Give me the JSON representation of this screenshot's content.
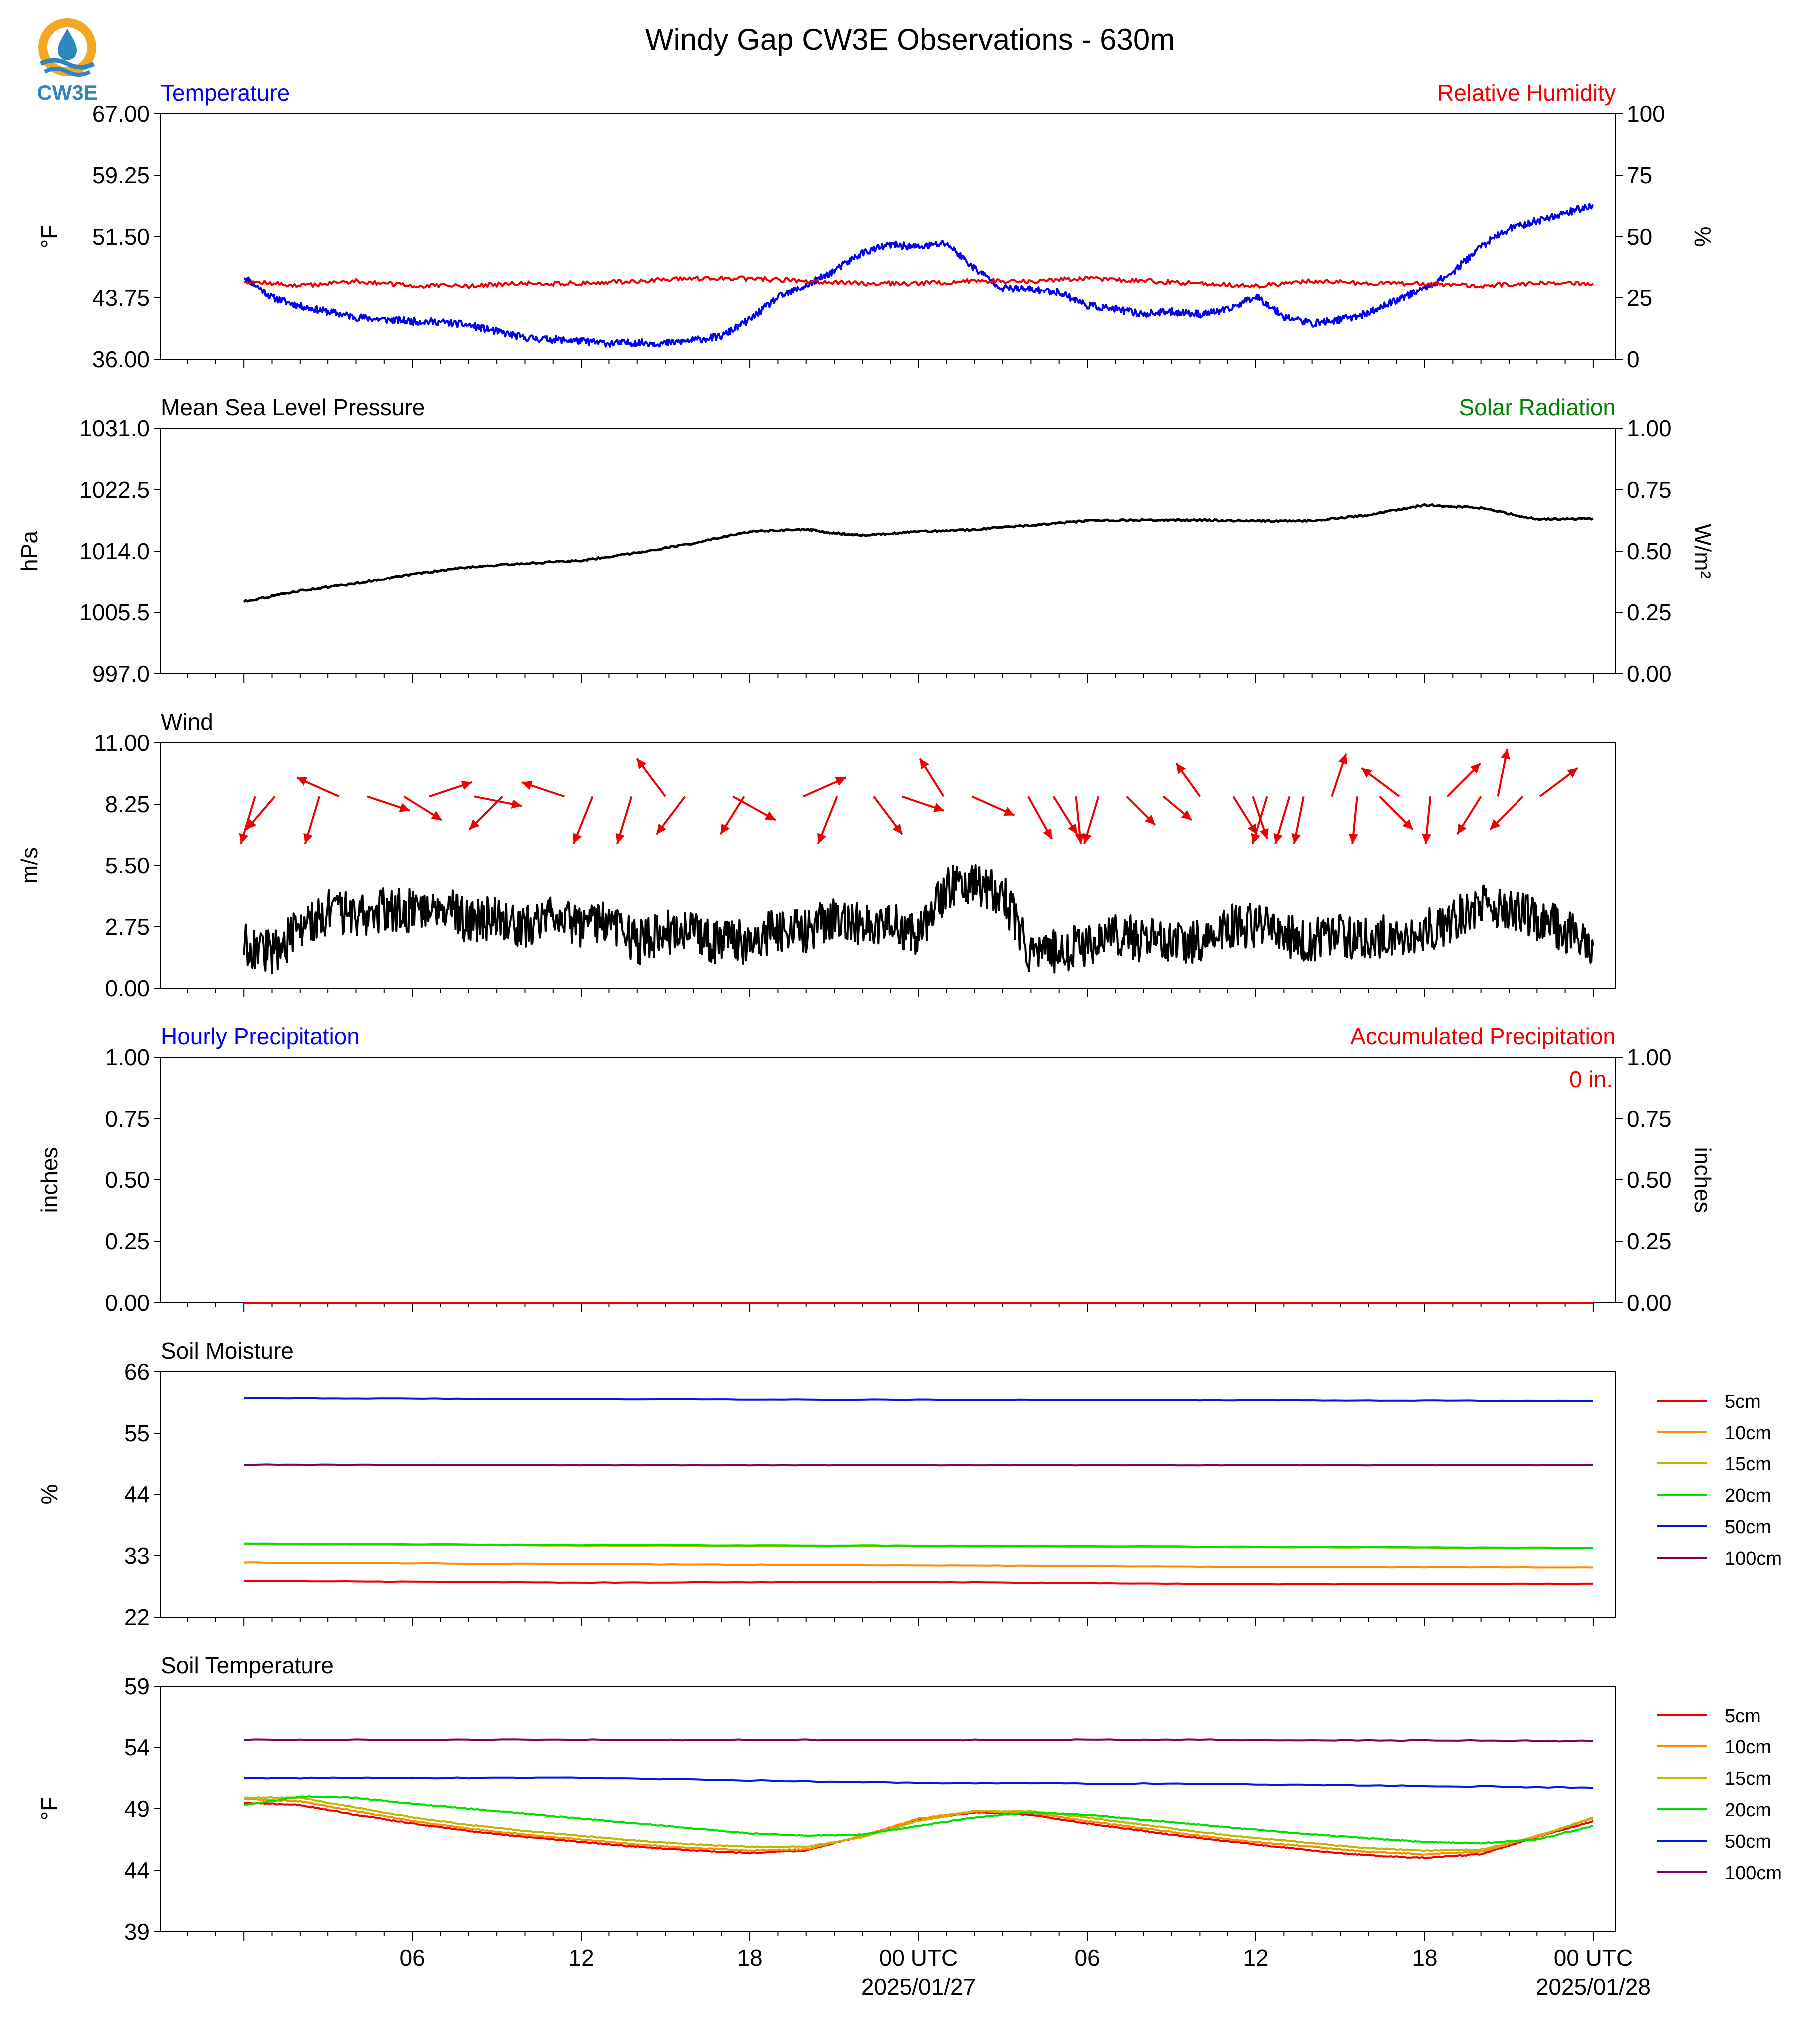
{
  "title": "Windy Gap CW3E Observations - 630m",
  "logo": {
    "text": "CW3E",
    "colors": {
      "sun": "#F5A623",
      "drop": "#2E86C1",
      "text": "#2E86C1"
    }
  },
  "time_axis": {
    "ticks": [
      {
        "hour": 6,
        "label": "06"
      },
      {
        "hour": 12,
        "label": "12"
      },
      {
        "hour": 18,
        "label": "18"
      },
      {
        "hour": 24,
        "label": "00 UTC",
        "date": "2025/01/27"
      },
      {
        "hour": 30,
        "label": "06"
      },
      {
        "hour": 36,
        "label": "12"
      },
      {
        "hour": 42,
        "label": "18"
      },
      {
        "hour": 48,
        "label": "00 UTC",
        "date": "2025/01/28"
      }
    ]
  },
  "colors": {
    "temperature": "#0000EE",
    "humidity": "#EE0000",
    "pressure": "#000000",
    "solar": "#008000",
    "wind": "#000000",
    "arrow": "#EE0000",
    "hourly_precip": "#0000EE",
    "accum_precip": "#EE0000",
    "depths": {
      "5cm": "#EE0000",
      "10cm": "#FF8C00",
      "15cm": "#BDB700",
      "20cm": "#00E000",
      "50cm": "#0018E0",
      "100cm": "#800060"
    }
  },
  "chart_data": [
    {
      "type": "line",
      "title_left": "Temperature",
      "title_right": "Relative Humidity",
      "ylabel_left": "°F",
      "ylabel_right": "%",
      "ylim_left": [
        36.0,
        67.0
      ],
      "ylim_right": [
        0,
        100
      ],
      "yticks_left": [
        "36.00",
        "43.75",
        "51.50",
        "59.25",
        "67.00"
      ],
      "yticks_right": [
        "0",
        "25",
        "50",
        "75",
        "100"
      ],
      "series": [
        {
          "name": "Temperature",
          "axis": "left",
          "x": [
            0,
            1,
            2,
            3,
            4,
            5,
            6,
            7,
            8,
            9,
            10,
            11,
            12,
            13,
            14,
            15,
            16,
            17,
            18,
            19,
            20,
            21,
            22,
            23,
            24,
            25,
            26,
            27,
            28,
            29,
            30,
            31,
            32,
            33,
            34,
            35,
            36,
            37,
            38,
            39,
            40,
            41,
            42,
            43,
            44,
            45,
            46,
            47,
            48
          ],
          "y": [
            46.5,
            43.8,
            42.7,
            42.0,
            41.3,
            41.0,
            40.8,
            40.7,
            40.3,
            39.5,
            38.7,
            38.5,
            38.3,
            38.0,
            38.1,
            38.0,
            38.4,
            38.9,
            41.0,
            43.8,
            45.3,
            47.2,
            49.5,
            50.5,
            50.2,
            50.7,
            47.5,
            45.0,
            44.8,
            44.5,
            42.8,
            42.3,
            41.7,
            42.0,
            41.7,
            42.2,
            44.0,
            41.4,
            40.5,
            41.0,
            41.8,
            43.5,
            45.0,
            47.0,
            50.3,
            52.5,
            53.5,
            54.5,
            55.5
          ]
        },
        {
          "name": "Relative Humidity",
          "axis": "right",
          "x": [
            0,
            2,
            4,
            6,
            8,
            10,
            12,
            14,
            16,
            18,
            20,
            22,
            24,
            26,
            28,
            30,
            32,
            34,
            36,
            38,
            40,
            42,
            44,
            46,
            48
          ],
          "y": [
            32,
            30,
            32,
            30,
            30,
            31,
            31,
            32,
            33,
            33,
            32,
            31,
            31,
            32,
            32,
            33,
            32,
            31,
            30,
            32,
            31,
            31,
            30,
            31,
            31
          ]
        }
      ]
    },
    {
      "type": "line",
      "title_left": "Mean Sea Level Pressure",
      "title_right": "Solar Radiation",
      "ylabel_left": "hPa",
      "ylabel_right": "W/m²",
      "ylim_left": [
        997.0,
        1031.0
      ],
      "ylim_right": [
        0.0,
        1.0
      ],
      "yticks_left": [
        "997.0",
        "1005.5",
        "1014.0",
        "1022.5",
        "1031.0"
      ],
      "yticks_right": [
        "0.00",
        "0.25",
        "0.50",
        "0.75",
        "1.00"
      ],
      "series": [
        {
          "name": "Mean Sea Level Pressure",
          "axis": "left",
          "x": [
            0,
            2,
            4,
            6,
            8,
            10,
            12,
            14,
            16,
            18,
            20,
            21,
            22,
            24,
            26,
            28,
            30,
            32,
            34,
            36,
            38,
            40,
            42,
            44,
            46,
            48
          ],
          "y": [
            1007.0,
            1008.5,
            1009.5,
            1010.8,
            1011.8,
            1012.3,
            1012.7,
            1013.8,
            1015.1,
            1016.7,
            1017.0,
            1016.5,
            1016.2,
            1016.7,
            1017.0,
            1017.6,
            1018.2,
            1018.3,
            1018.3,
            1018.2,
            1018.2,
            1019.0,
            1020.4,
            1020.0,
            1018.4,
            1018.5
          ]
        }
      ]
    },
    {
      "type": "line",
      "title_left": "Wind",
      "ylabel_left": "m/s",
      "ylim_left": [
        0.0,
        11.0
      ],
      "yticks_left": [
        "0.00",
        "2.75",
        "5.50",
        "8.25",
        "11.00"
      ],
      "series": [
        {
          "name": "Wind",
          "axis": "left",
          "x": [
            0,
            1,
            2,
            3,
            4,
            5,
            6,
            7,
            8,
            9,
            10,
            11,
            12,
            13,
            14,
            15,
            16,
            17,
            18,
            19,
            20,
            21,
            22,
            23,
            24,
            25,
            26,
            27,
            28,
            29,
            30,
            31,
            32,
            33,
            34,
            35,
            36,
            37,
            38,
            39,
            40,
            41,
            42,
            43,
            44,
            45,
            46,
            47,
            48
          ],
          "y": [
            2.0,
            1.6,
            2.6,
            3.4,
            3.3,
            3.5,
            3.5,
            3.9,
            2.9,
            3.2,
            2.6,
            3.6,
            2.7,
            3.1,
            2.0,
            2.5,
            2.4,
            2.0,
            2.1,
            2.6,
            2.5,
            3.2,
            2.8,
            2.8,
            2.5,
            4.5,
            4.8,
            4.2,
            1.5,
            1.7,
            2.0,
            2.5,
            2.1,
            2.2,
            2.0,
            2.8,
            2.8,
            2.3,
            2.2,
            2.4,
            2.2,
            2.4,
            2.6,
            3.0,
            3.8,
            3.5,
            3.1,
            2.6,
            1.9
          ]
        }
      ],
      "arrows": {
        "hours": [
          0.4,
          1.1,
          2.7,
          3.4,
          4.4,
          5.7,
          6.6,
          8.2,
          9.2,
          11.4,
          12.4,
          13.8,
          15.0,
          15.7,
          17.4,
          17.8,
          19.9,
          21.1,
          22.4,
          23.4,
          24.9,
          25.9,
          27.9,
          28.8,
          29.6,
          30.4,
          31.4,
          32.7,
          34.0,
          35.2,
          35.9,
          36.4,
          37.2,
          37.7,
          38.7,
          39.6,
          40.4,
          41.1,
          42.2,
          42.8,
          44.0,
          44.6,
          45.5,
          46.1
        ],
        "u": [
          -0.3,
          -0.6,
          -0.3,
          -0.9,
          0.9,
          0.8,
          0.9,
          1.0,
          -0.7,
          -0.9,
          -0.4,
          -0.3,
          -0.6,
          -0.6,
          0.9,
          -0.5,
          0.9,
          -0.4,
          0.6,
          0.9,
          -0.5,
          0.9,
          0.5,
          0.5,
          0.1,
          -0.3,
          0.6,
          0.6,
          -0.5,
          0.5,
          0.3,
          -0.3,
          -0.3,
          -0.2,
          0.3,
          -0.1,
          0.7,
          -0.8,
          -0.1,
          0.7,
          -0.5,
          0.2,
          -0.7,
          0.8
        ],
        "v": [
          -1,
          -0.7,
          -1,
          0.4,
          -0.3,
          -0.5,
          0.3,
          -0.2,
          -0.7,
          0.3,
          -1,
          -1,
          0.8,
          -0.8,
          -0.5,
          -0.8,
          0.4,
          -1,
          -0.8,
          -0.3,
          0.8,
          -0.4,
          -0.9,
          -0.8,
          -1,
          -1,
          -0.6,
          -0.5,
          0.7,
          -0.8,
          -0.9,
          -1,
          -1,
          -1,
          0.9,
          -1,
          -0.7,
          0.6,
          -1,
          0.7,
          -0.8,
          1,
          -0.7,
          0.6
        ]
      }
    },
    {
      "type": "line",
      "title_left": "Hourly Precipitation",
      "title_right": "Accumulated Precipitation",
      "annotation": "0 in.",
      "ylabel_left": "inches",
      "ylabel_right": "inches",
      "ylim_left": [
        0.0,
        1.0
      ],
      "ylim_right": [
        0.0,
        1.0
      ],
      "yticks_left": [
        "0.00",
        "0.25",
        "0.50",
        "0.75",
        "1.00"
      ],
      "yticks_right": [
        "0.00",
        "0.25",
        "0.50",
        "0.75",
        "1.00"
      ],
      "series": [
        {
          "name": "Hourly Precipitation",
          "axis": "left",
          "x": [
            0,
            48
          ],
          "y": [
            0.0,
            0.0
          ]
        },
        {
          "name": "Accumulated Precipitation",
          "axis": "right",
          "x": [
            0,
            48
          ],
          "y": [
            0.0,
            0.0
          ]
        }
      ]
    },
    {
      "type": "line",
      "title_left": "Soil Moisture",
      "ylabel_left": "%",
      "ylim_left": [
        22,
        66
      ],
      "yticks_left": [
        "22",
        "33",
        "44",
        "55",
        "66"
      ],
      "legend": "right",
      "series": [
        {
          "name": "5cm",
          "x": [
            0,
            12,
            24,
            36,
            48
          ],
          "y": [
            28.5,
            28.2,
            28.3,
            27.9,
            28.0
          ]
        },
        {
          "name": "10cm",
          "x": [
            0,
            12,
            24,
            36,
            48
          ],
          "y": [
            31.8,
            31.5,
            31.3,
            31.0,
            30.9
          ]
        },
        {
          "name": "15cm",
          "x": [
            0,
            12,
            24,
            36,
            48
          ],
          "y": [
            35.1,
            34.8,
            34.7,
            34.5,
            34.4
          ]
        },
        {
          "name": "20cm",
          "x": [
            0,
            12,
            24,
            36,
            48
          ],
          "y": [
            35.2,
            34.9,
            34.8,
            34.6,
            34.4
          ]
        },
        {
          "name": "50cm",
          "x": [
            0,
            12,
            24,
            36,
            48
          ],
          "y": [
            61.3,
            61.1,
            61.0,
            60.9,
            60.8
          ]
        },
        {
          "name": "100cm",
          "x": [
            0,
            12,
            24,
            36,
            48
          ],
          "y": [
            49.3,
            49.2,
            49.2,
            49.2,
            49.2
          ]
        }
      ]
    },
    {
      "type": "line",
      "title_left": "Soil Temperature",
      "ylabel_left": "°F",
      "ylim_left": [
        39,
        59
      ],
      "yticks_left": [
        "39",
        "44",
        "49",
        "54",
        "59"
      ],
      "legend": "right",
      "series": [
        {
          "name": "5cm",
          "x": [
            0,
            2,
            4,
            6,
            8,
            10,
            12,
            14,
            16,
            18,
            20,
            22,
            24,
            26,
            28,
            30,
            32,
            34,
            36,
            38,
            40,
            42,
            44,
            46,
            48
          ],
          "y": [
            49.5,
            49.3,
            48.5,
            47.8,
            47.2,
            46.7,
            46.3,
            45.9,
            45.6,
            45.4,
            45.6,
            46.8,
            48.1,
            48.7,
            48.5,
            47.8,
            47.2,
            46.6,
            46.1,
            45.6,
            45.2,
            45.0,
            45.3,
            46.7,
            48.0
          ]
        },
        {
          "name": "10cm",
          "x": [
            0,
            2,
            4,
            6,
            8,
            10,
            12,
            14,
            16,
            18,
            20,
            22,
            24,
            26,
            28,
            30,
            32,
            34,
            36,
            38,
            40,
            42,
            44,
            46,
            48
          ],
          "y": [
            49.8,
            49.6,
            48.8,
            48.0,
            47.4,
            46.9,
            46.5,
            46.1,
            45.8,
            45.6,
            45.7,
            46.8,
            48.2,
            48.8,
            48.7,
            48.0,
            47.4,
            46.8,
            46.3,
            45.9,
            45.5,
            45.3,
            45.5,
            46.8,
            48.2
          ]
        },
        {
          "name": "15cm",
          "x": [
            0,
            2,
            4,
            6,
            8,
            10,
            12,
            14,
            16,
            18,
            20,
            22,
            24,
            26,
            28,
            30,
            32,
            34,
            36,
            38,
            40,
            42,
            44,
            46,
            48
          ],
          "y": [
            49.9,
            49.9,
            49.1,
            48.3,
            47.7,
            47.2,
            46.8,
            46.4,
            46.1,
            45.9,
            45.9,
            46.7,
            48.0,
            48.8,
            48.8,
            48.3,
            47.7,
            47.1,
            46.6,
            46.2,
            45.8,
            45.6,
            45.7,
            46.7,
            48.3
          ]
        },
        {
          "name": "20cm",
          "x": [
            0,
            2,
            4,
            6,
            8,
            10,
            12,
            14,
            16,
            18,
            20,
            22,
            24,
            26,
            28,
            30,
            32,
            34,
            36,
            38,
            40,
            42,
            44,
            46,
            48
          ],
          "y": [
            49.3,
            50.0,
            49.9,
            49.4,
            49.0,
            48.6,
            48.2,
            47.8,
            47.4,
            47.0,
            46.8,
            46.9,
            47.6,
            48.3,
            48.7,
            48.5,
            48.1,
            47.7,
            47.3,
            46.9,
            46.6,
            46.3,
            46.2,
            46.5,
            47.6
          ]
        },
        {
          "name": "50cm",
          "x": [
            0,
            12,
            24,
            36,
            48
          ],
          "y": [
            51.5,
            51.5,
            51.1,
            51.0,
            50.7
          ]
        },
        {
          "name": "100cm",
          "x": [
            0,
            12,
            24,
            36,
            48
          ],
          "y": [
            54.6,
            54.6,
            54.6,
            54.6,
            54.5
          ]
        }
      ]
    }
  ]
}
